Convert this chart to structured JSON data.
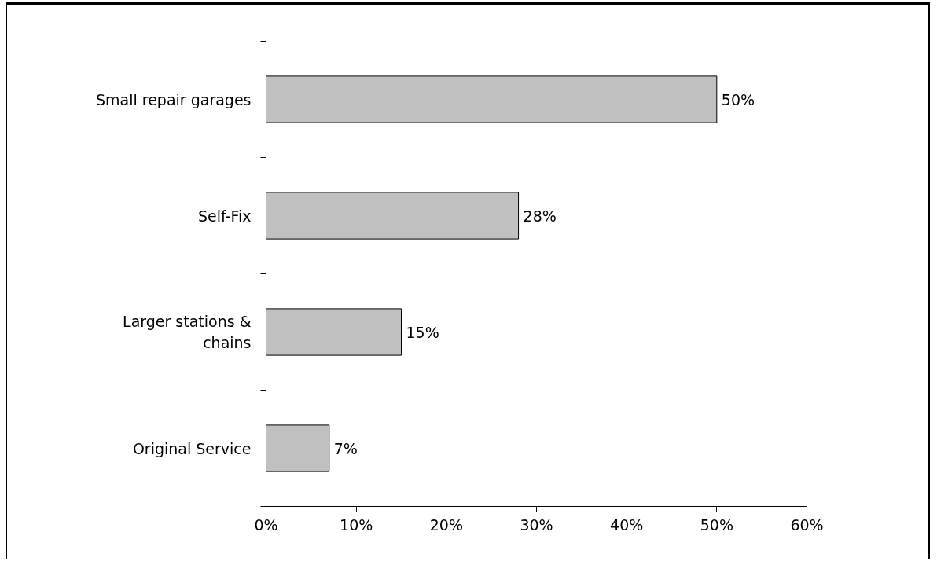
{
  "chart_data": {
    "type": "bar",
    "orientation": "horizontal",
    "categories": [
      "Small repair garages",
      "Self-Fix",
      "Larger stations & chains",
      "Original Service"
    ],
    "values": [
      50,
      28,
      15,
      7
    ],
    "color": "#c0c0c0",
    "value_labels": [
      "50%",
      "28%",
      "15%",
      "7%"
    ],
    "xlim": [
      0,
      60
    ],
    "xticks": [
      {
        "value": 0,
        "label": "0%"
      },
      {
        "value": 10,
        "label": "10%"
      },
      {
        "value": 20,
        "label": "20%"
      },
      {
        "value": 30,
        "label": "30%"
      },
      {
        "value": 40,
        "label": "40%"
      },
      {
        "value": 50,
        "label": "50%"
      },
      {
        "value": 60,
        "label": "60%"
      }
    ],
    "grid": false
  }
}
